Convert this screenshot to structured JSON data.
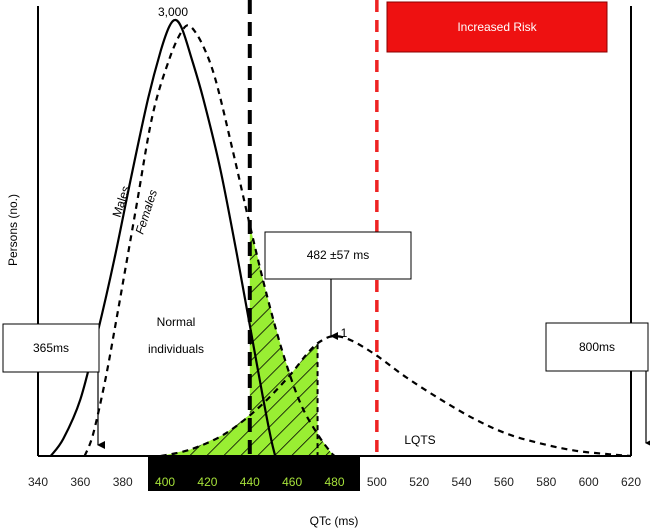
{
  "chart_data": {
    "type": "line",
    "xlabel": "QTc (ms)",
    "ylabel": "Persons (no.)",
    "xlim": [
      340,
      620
    ],
    "x_ticks": [
      340,
      360,
      380,
      400,
      420,
      440,
      460,
      480,
      500,
      520,
      540,
      560,
      580,
      600,
      620
    ],
    "highlight_range": [
      400,
      480
    ],
    "colors": {
      "males": "#000000",
      "females": "#000000",
      "lqts": "#000000",
      "shaded": "#99ee33",
      "risk_box": "#ee1111",
      "risk_line": "#ee2222",
      "threshold_line": "#000000"
    },
    "series": [
      {
        "name": "Males",
        "style": "solid",
        "points": [
          [
            346,
            0.0
          ],
          [
            352,
            0.04
          ],
          [
            360,
            0.13
          ],
          [
            368,
            0.28
          ],
          [
            376,
            0.45
          ],
          [
            384,
            0.64
          ],
          [
            392,
            0.82
          ],
          [
            398,
            0.93
          ],
          [
            402,
            0.985
          ],
          [
            405,
            1.0
          ],
          [
            408,
            0.98
          ],
          [
            412,
            0.92
          ],
          [
            418,
            0.82
          ],
          [
            426,
            0.66
          ],
          [
            434,
            0.46
          ],
          [
            440,
            0.3
          ],
          [
            446,
            0.14
          ],
          [
            450,
            0.04
          ],
          [
            452,
            0.0
          ]
        ]
      },
      {
        "name": "Females",
        "style": "dashed",
        "points": [
          [
            362,
            0.0
          ],
          [
            366,
            0.05
          ],
          [
            372,
            0.18
          ],
          [
            378,
            0.34
          ],
          [
            386,
            0.56
          ],
          [
            394,
            0.78
          ],
          [
            402,
            0.91
          ],
          [
            408,
            0.975
          ],
          [
            412,
            0.985
          ],
          [
            418,
            0.94
          ],
          [
            424,
            0.86
          ],
          [
            432,
            0.7
          ],
          [
            440,
            0.53
          ],
          [
            448,
            0.37
          ],
          [
            456,
            0.23
          ],
          [
            464,
            0.12
          ],
          [
            472,
            0.05
          ],
          [
            478,
            0.01
          ],
          [
            480,
            0.0
          ]
        ]
      },
      {
        "name": "LQTS",
        "style": "dashed",
        "points": [
          [
            398,
            0.0
          ],
          [
            412,
            0.015
          ],
          [
            428,
            0.05
          ],
          [
            444,
            0.11
          ],
          [
            458,
            0.18
          ],
          [
            468,
            0.24
          ],
          [
            474,
            0.265
          ],
          [
            480,
            0.275
          ],
          [
            488,
            0.265
          ],
          [
            500,
            0.23
          ],
          [
            514,
            0.18
          ],
          [
            530,
            0.13
          ],
          [
            546,
            0.085
          ],
          [
            562,
            0.05
          ],
          [
            578,
            0.028
          ],
          [
            594,
            0.012
          ],
          [
            610,
            0.004
          ],
          [
            620,
            0.0
          ]
        ]
      }
    ],
    "threshold_x": 440,
    "risk_threshold_x": 500,
    "annotations": {
      "peak_label": "3,000",
      "lqts_peak_label": "1",
      "males_label": "Males",
      "females_label": "Females",
      "normal_label_line1": "Normal",
      "normal_label_line2": "individuals",
      "lqts_label": "LQTS",
      "risk_label": "Increased Risk",
      "box_left": "365ms",
      "box_mid": "482 ±57 ms",
      "box_right": "800ms"
    }
  }
}
